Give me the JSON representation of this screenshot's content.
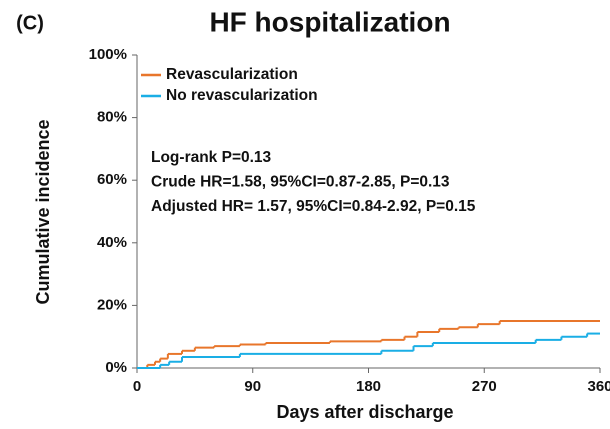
{
  "chart_data": {
    "type": "step",
    "panel_label": "(C)",
    "title": "HF hospitalization",
    "x_label": "Days after discharge",
    "y_label": "Cumulative incidence",
    "annotations": [
      "Log-rank P=0.13",
      "Crude HR=1.58, 95%CI=0.87-2.85, P=0.13",
      "Adjusted HR= 1.57, 95%CI=0.84-2.92, P=0.15"
    ],
    "xlim": [
      0,
      360
    ],
    "xticks": [
      0,
      90,
      180,
      270,
      360
    ],
    "ylim": [
      0,
      100
    ],
    "yticks": [
      {
        "value": 0,
        "label": "0%"
      },
      {
        "value": 20,
        "label": "20%"
      },
      {
        "value": 40,
        "label": "40%"
      },
      {
        "value": 60,
        "label": "60%"
      },
      {
        "value": 80,
        "label": "80%"
      },
      {
        "value": 100,
        "label": "100%"
      }
    ],
    "legend": "upper left",
    "series": [
      {
        "name": "Revascularization",
        "color": "#e8762b",
        "x": [
          0,
          8,
          14,
          18,
          24,
          35,
          45,
          60,
          80,
          100,
          150,
          190,
          208,
          218,
          235,
          250,
          265,
          282
        ],
        "values": [
          0,
          1,
          2,
          3,
          4.5,
          5.5,
          6.5,
          7,
          7.5,
          8,
          8.5,
          9,
          10,
          11.5,
          12.5,
          13,
          14,
          15
        ]
      },
      {
        "name": "No revascularization",
        "color": "#1aaee5",
        "x": [
          0,
          18,
          25,
          35,
          80,
          190,
          215,
          230,
          310,
          330,
          350
        ],
        "values": [
          0,
          1,
          2,
          3.5,
          4.5,
          5.5,
          7,
          8,
          9,
          10,
          11
        ]
      }
    ]
  }
}
